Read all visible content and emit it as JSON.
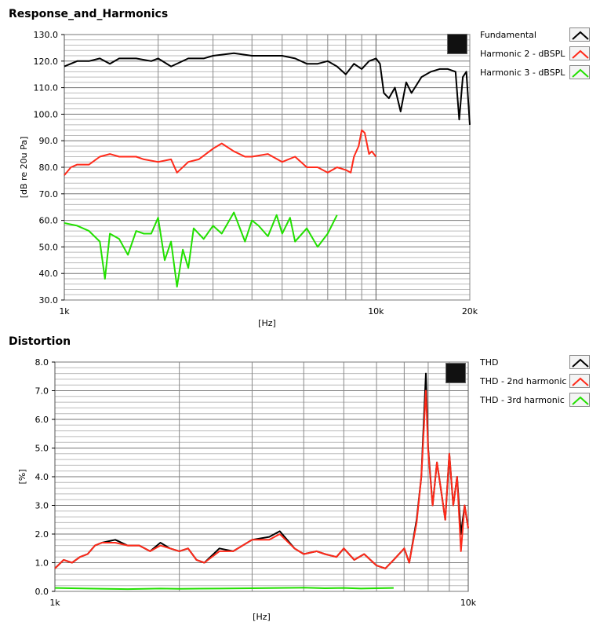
{
  "chart_data": [
    {
      "type": "line",
      "title": "Response_and_Harmonics",
      "xlabel": "[Hz]",
      "ylabel": "[dB re 20u Pa]",
      "xscale": "log",
      "xlim": [
        1000,
        20000
      ],
      "ylim": [
        30,
        130
      ],
      "grid": true,
      "legend_position": "right",
      "x_tick_labels": [
        "1k",
        "10k",
        "20k"
      ],
      "y_tick_labels": [
        "30.0",
        "40.0",
        "50.0",
        "60.0",
        "70.0",
        "80.0",
        "90.0",
        "100.0",
        "110.0",
        "120.0",
        "130.0"
      ],
      "series": [
        {
          "name": "Fundamental",
          "color": "#000000",
          "x": [
            1000,
            1100,
            1200,
            1300,
            1400,
            1500,
            1700,
            1900,
            2000,
            2200,
            2500,
            2800,
            3000,
            3500,
            4000,
            4500,
            5000,
            5500,
            6000,
            6500,
            7000,
            7500,
            8000,
            8500,
            9000,
            9500,
            10000,
            10300,
            10600,
            11000,
            11500,
            12000,
            12500,
            13000,
            14000,
            15000,
            16000,
            17000,
            18000,
            18500,
            19000,
            19500,
            20000
          ],
          "y": [
            118,
            120,
            120,
            121,
            119,
            121,
            121,
            120,
            121,
            118,
            121,
            121,
            122,
            123,
            122,
            122,
            122,
            121,
            119,
            119,
            120,
            118,
            115,
            119,
            117,
            120,
            121,
            119,
            108,
            106,
            110,
            101,
            112,
            108,
            114,
            116,
            117,
            117,
            116,
            98,
            114,
            116,
            96
          ]
        },
        {
          "name": "Harmonic 2 - dBSPL",
          "color": "#ff2a1a",
          "x": [
            1000,
            1050,
            1100,
            1200,
            1300,
            1400,
            1500,
            1700,
            1800,
            2000,
            2200,
            2300,
            2500,
            2700,
            3000,
            3200,
            3500,
            3800,
            4000,
            4500,
            5000,
            5500,
            6000,
            6500,
            7000,
            7500,
            8000,
            8300,
            8500,
            8800,
            9000,
            9200,
            9500,
            9700,
            10000
          ],
          "y": [
            77,
            80,
            81,
            81,
            84,
            85,
            84,
            84,
            83,
            82,
            83,
            78,
            82,
            83,
            87,
            89,
            86,
            84,
            84,
            85,
            82,
            84,
            80,
            80,
            78,
            80,
            79,
            78,
            84,
            88,
            94,
            93,
            85,
            86,
            84
          ]
        },
        {
          "name": "Harmonic 3 - dBSPL",
          "color": "#22e000",
          "x": [
            1000,
            1100,
            1200,
            1300,
            1350,
            1400,
            1500,
            1600,
            1700,
            1800,
            1900,
            2000,
            2100,
            2200,
            2300,
            2400,
            2500,
            2600,
            2800,
            3000,
            3200,
            3500,
            3800,
            4000,
            4200,
            4500,
            4800,
            5000,
            5300,
            5500,
            6000,
            6500,
            7000,
            7500
          ],
          "y": [
            59,
            58,
            56,
            52,
            38,
            55,
            53,
            47,
            56,
            55,
            55,
            61,
            45,
            52,
            35,
            49,
            42,
            57,
            53,
            58,
            55,
            63,
            52,
            60,
            58,
            54,
            62,
            55,
            61,
            52,
            57,
            50,
            55,
            62
          ]
        }
      ]
    },
    {
      "type": "line",
      "title": "Distortion",
      "xlabel": "[Hz]",
      "ylabel": "[%]",
      "xscale": "log",
      "xlim": [
        1000,
        10000
      ],
      "ylim": [
        0,
        8
      ],
      "grid": true,
      "legend_position": "right",
      "x_tick_labels": [
        "1k",
        "10k"
      ],
      "y_tick_labels": [
        "0.0",
        "1.0",
        "2.0",
        "3.0",
        "4.0",
        "5.0",
        "6.0",
        "7.0",
        "8.0"
      ],
      "series": [
        {
          "name": "THD",
          "color": "#000000",
          "x": [
            1000,
            1050,
            1100,
            1150,
            1200,
            1250,
            1300,
            1400,
            1500,
            1600,
            1700,
            1800,
            1900,
            2000,
            2100,
            2200,
            2300,
            2500,
            2700,
            3000,
            3300,
            3500,
            3800,
            4000,
            4300,
            4500,
            4800,
            5000,
            5300,
            5600,
            6000,
            6300,
            6600,
            7000,
            7200,
            7500,
            7700,
            7900,
            8000,
            8200,
            8400,
            8600,
            8800,
            9000,
            9200,
            9400,
            9600,
            9800,
            10000
          ],
          "y": [
            0.8,
            1.1,
            1.0,
            1.2,
            1.3,
            1.6,
            1.7,
            1.8,
            1.6,
            1.6,
            1.4,
            1.7,
            1.5,
            1.4,
            1.5,
            1.1,
            1.0,
            1.5,
            1.4,
            1.8,
            1.9,
            2.1,
            1.5,
            1.3,
            1.4,
            1.3,
            1.2,
            1.5,
            1.1,
            1.3,
            0.9,
            0.8,
            1.1,
            1.5,
            1.0,
            2.5,
            4.0,
            7.6,
            5.0,
            3.0,
            4.5,
            3.5,
            2.5,
            4.8,
            3.0,
            4.0,
            2.0,
            3.0,
            2.2
          ]
        },
        {
          "name": "THD - 2nd harmonic",
          "color": "#ff2a1a",
          "x": [
            1000,
            1050,
            1100,
            1150,
            1200,
            1250,
            1300,
            1400,
            1500,
            1600,
            1700,
            1800,
            1900,
            2000,
            2100,
            2200,
            2300,
            2500,
            2700,
            3000,
            3300,
            3500,
            3800,
            4000,
            4300,
            4500,
            4800,
            5000,
            5300,
            5600,
            6000,
            6300,
            6600,
            7000,
            7200,
            7500,
            7700,
            7900,
            8000,
            8200,
            8400,
            8600,
            8800,
            9000,
            9200,
            9400,
            9600,
            9800,
            10000
          ],
          "y": [
            0.8,
            1.1,
            1.0,
            1.2,
            1.3,
            1.6,
            1.7,
            1.7,
            1.6,
            1.6,
            1.4,
            1.6,
            1.5,
            1.4,
            1.5,
            1.1,
            1.0,
            1.4,
            1.4,
            1.8,
            1.8,
            2.0,
            1.5,
            1.3,
            1.4,
            1.3,
            1.2,
            1.5,
            1.1,
            1.3,
            0.9,
            0.8,
            1.1,
            1.5,
            1.0,
            2.4,
            4.0,
            7.0,
            4.9,
            3.0,
            4.5,
            3.5,
            2.5,
            4.8,
            3.0,
            4.0,
            1.4,
            3.0,
            2.2
          ]
        },
        {
          "name": "THD - 3rd harmonic",
          "color": "#22e000",
          "x": [
            1000,
            1200,
            1500,
            1800,
            2000,
            2500,
            3000,
            3500,
            4000,
            4500,
            5000,
            5500,
            6000,
            6600
          ],
          "y": [
            0.12,
            0.1,
            0.08,
            0.1,
            0.09,
            0.1,
            0.11,
            0.12,
            0.13,
            0.11,
            0.12,
            0.1,
            0.11,
            0.12
          ]
        }
      ]
    }
  ]
}
